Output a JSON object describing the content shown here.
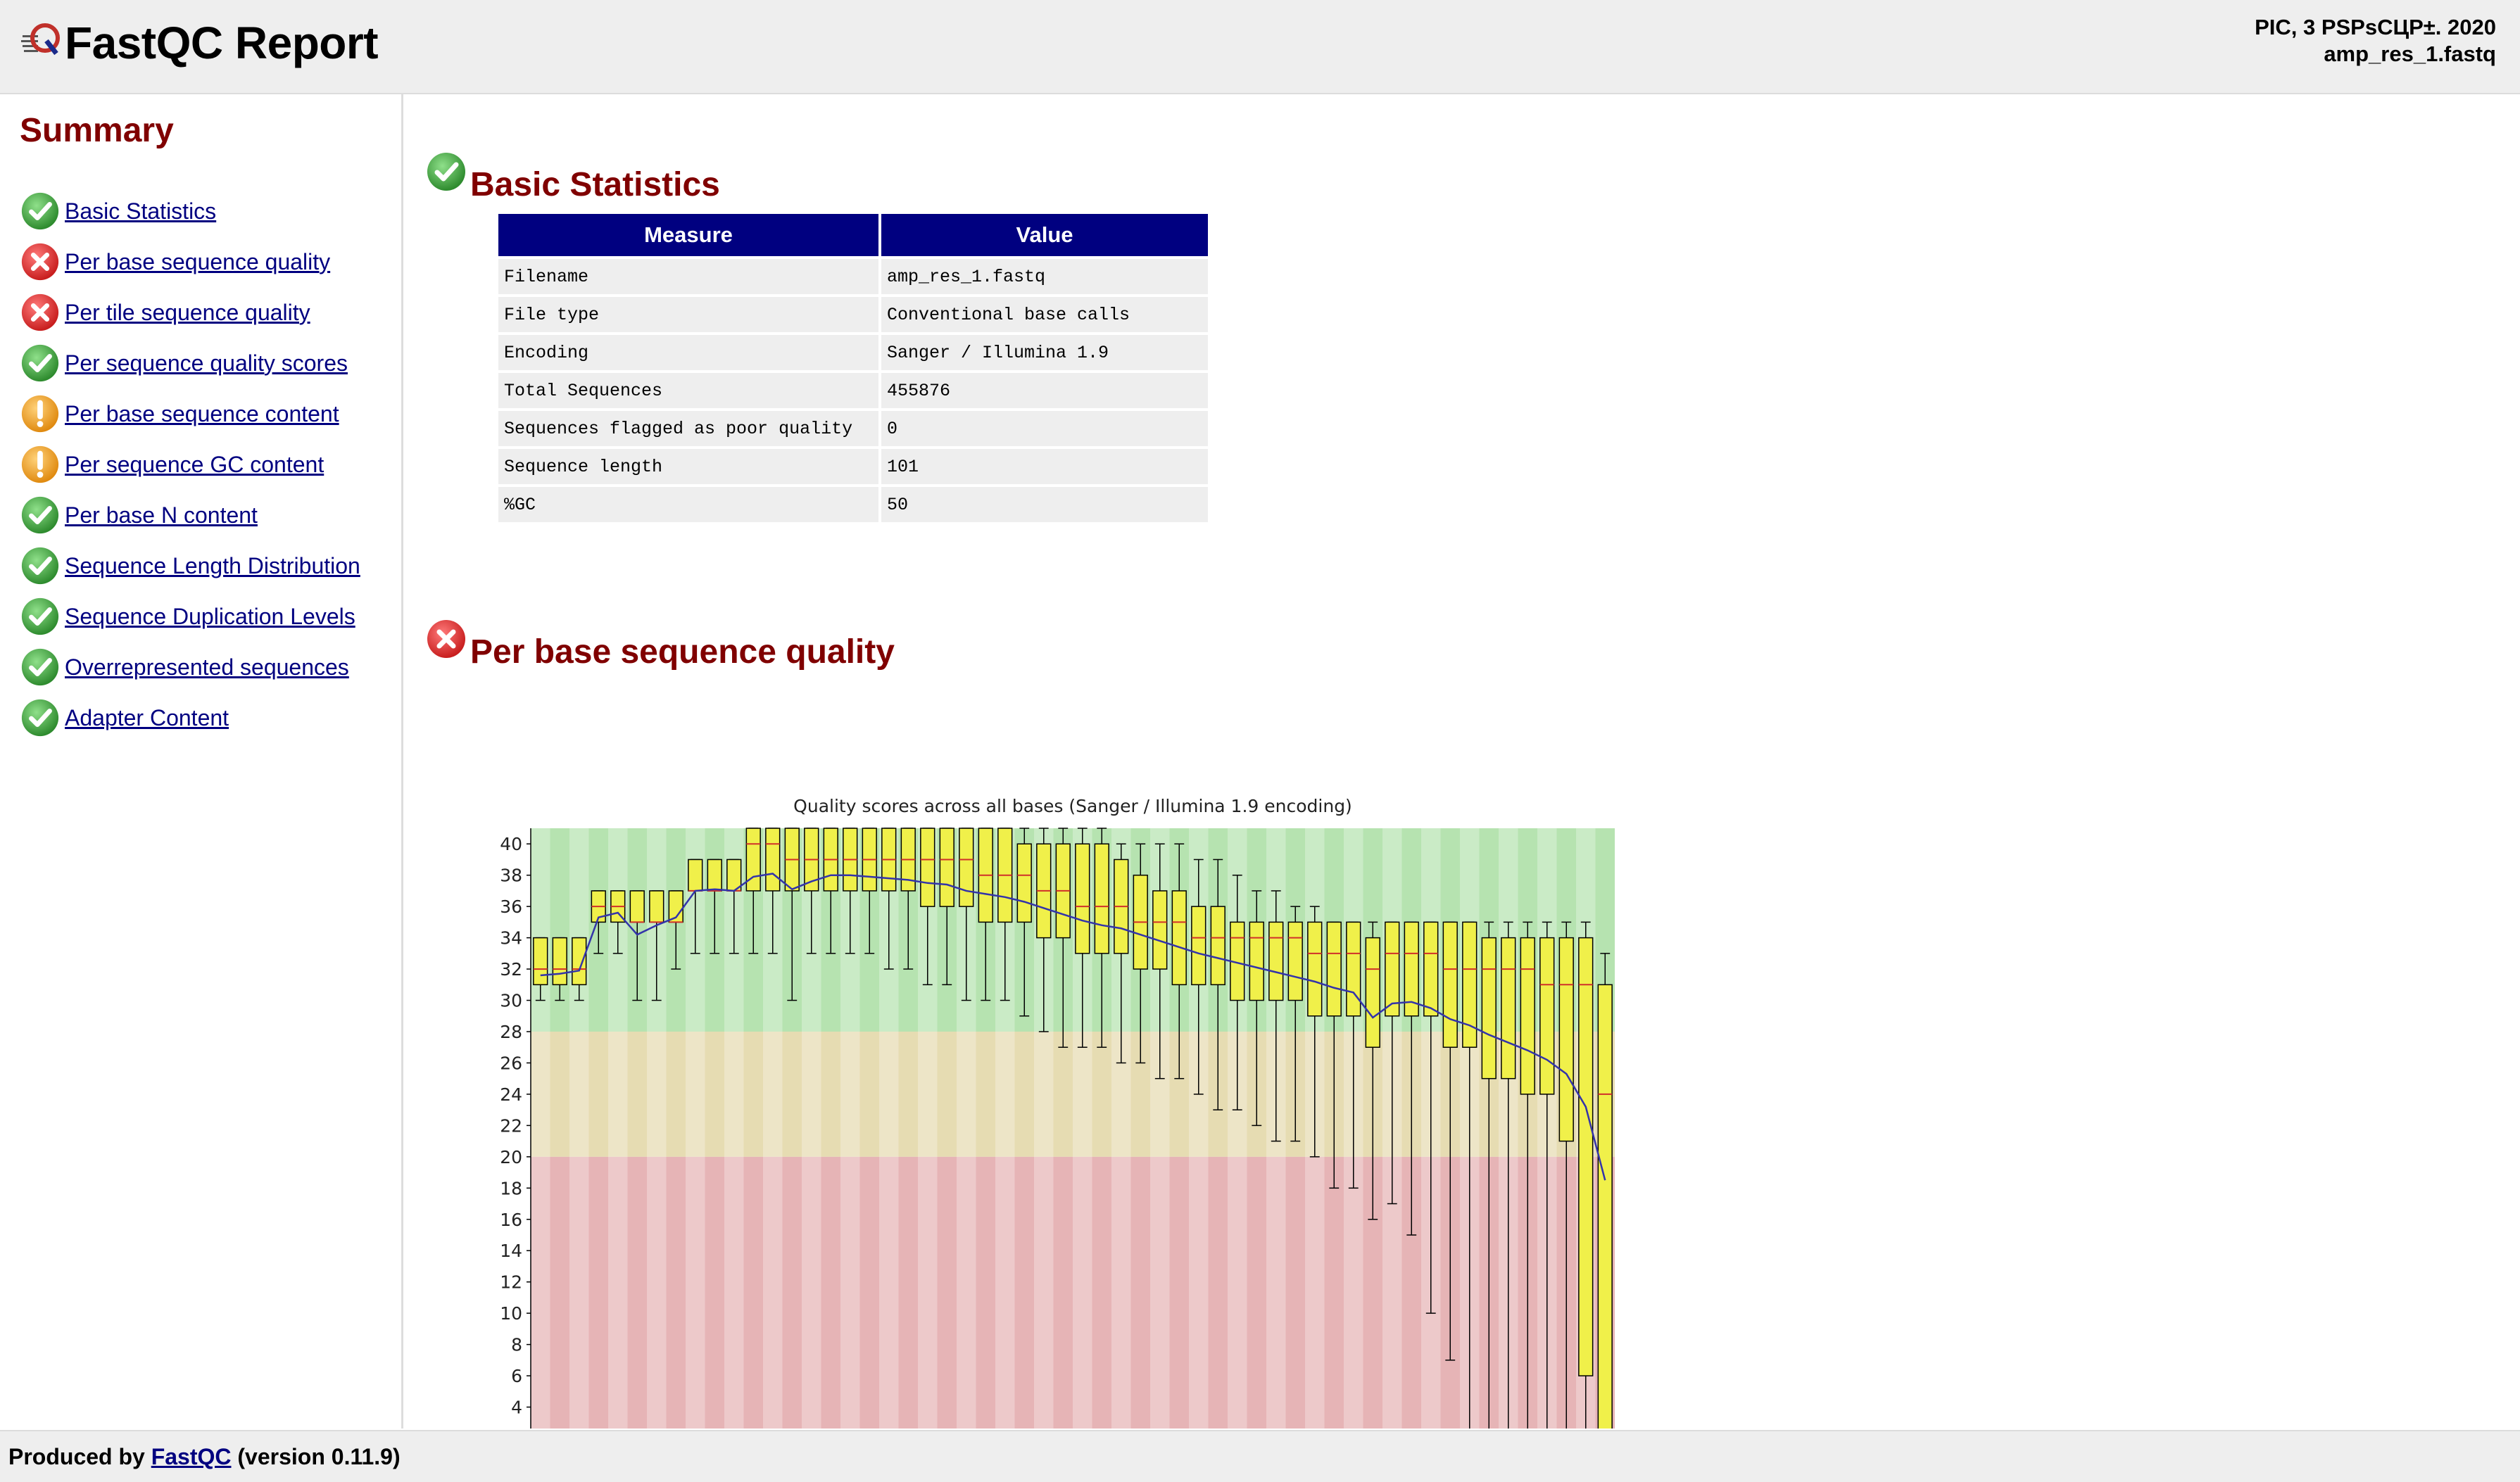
{
  "header": {
    "title": "FastQC Report",
    "date": "PIC, 3 PSPsCЦP±. 2020",
    "filename": "amp_res_1.fastq"
  },
  "summary": {
    "title": "Summary",
    "items": [
      {
        "label": "Basic Statistics",
        "status": "pass"
      },
      {
        "label": "Per base sequence quality",
        "status": "fail"
      },
      {
        "label": "Per tile sequence quality",
        "status": "fail"
      },
      {
        "label": "Per sequence quality scores",
        "status": "pass"
      },
      {
        "label": "Per base sequence content",
        "status": "warn"
      },
      {
        "label": "Per sequence GC content",
        "status": "warn"
      },
      {
        "label": "Per base N content",
        "status": "pass"
      },
      {
        "label": "Sequence Length Distribution",
        "status": "pass"
      },
      {
        "label": "Sequence Duplication Levels",
        "status": "pass"
      },
      {
        "label": "Overrepresented sequences",
        "status": "pass"
      },
      {
        "label": "Adapter Content",
        "status": "pass"
      }
    ]
  },
  "basic_statistics": {
    "title": "Basic Statistics",
    "status": "pass",
    "headers": [
      "Measure",
      "Value"
    ],
    "rows": [
      {
        "measure": "Filename",
        "value": "amp_res_1.fastq"
      },
      {
        "measure": "File type",
        "value": "Conventional base calls"
      },
      {
        "measure": "Encoding",
        "value": "Sanger / Illumina 1.9"
      },
      {
        "measure": "Total Sequences",
        "value": "455876"
      },
      {
        "measure": "Sequences flagged as poor quality",
        "value": "0"
      },
      {
        "measure": "Sequence length",
        "value": "101"
      },
      {
        "measure": "%GC",
        "value": "50"
      }
    ]
  },
  "per_base_quality": {
    "title": "Per base sequence quality",
    "status": "fail"
  },
  "chart_data": {
    "type": "box",
    "title": "Quality scores across all bases (Sanger / Illumina 1.9 encoding)",
    "yticks": [
      4,
      6,
      8,
      10,
      12,
      14,
      16,
      18,
      20,
      22,
      24,
      26,
      28,
      30,
      32,
      34,
      36,
      38,
      40
    ],
    "ylim": [
      2,
      41
    ],
    "zones": [
      {
        "from": 28,
        "to": 41,
        "color": "#b6e3b0"
      },
      {
        "from": 20,
        "to": 28,
        "color": "#e6dcb2"
      },
      {
        "from": 0,
        "to": 20,
        "color": "#e6b4b6"
      }
    ],
    "colors": {
      "box": "#f0f04a",
      "median": "#d0302a",
      "mean": "#3333aa"
    },
    "boxes": [
      {
        "min": 30,
        "q1": 31,
        "median": 32,
        "q3": 34,
        "max": 34,
        "mean": 31.6
      },
      {
        "min": 30,
        "q1": 31,
        "median": 32,
        "q3": 34,
        "max": 34,
        "mean": 31.7
      },
      {
        "min": 30,
        "q1": 31,
        "median": 32,
        "q3": 34,
        "max": 34,
        "mean": 31.9
      },
      {
        "min": 33,
        "q1": 35,
        "median": 36,
        "q3": 37,
        "max": 37,
        "mean": 35.3
      },
      {
        "min": 33,
        "q1": 35,
        "median": 36,
        "q3": 37,
        "max": 37,
        "mean": 35.6
      },
      {
        "min": 30,
        "q1": 35,
        "median": 35,
        "q3": 37,
        "max": 37,
        "mean": 34.2
      },
      {
        "min": 30,
        "q1": 35,
        "median": 35,
        "q3": 37,
        "max": 37,
        "mean": 34.8
      },
      {
        "min": 32,
        "q1": 35,
        "median": 35,
        "q3": 37,
        "max": 37,
        "mean": 35.3
      },
      {
        "min": 33,
        "q1": 37,
        "median": 37,
        "q3": 39,
        "max": 39,
        "mean": 37.0
      },
      {
        "min": 33,
        "q1": 37,
        "median": 37,
        "q3": 39,
        "max": 39,
        "mean": 37.1
      },
      {
        "min": 33,
        "q1": 37,
        "median": 37,
        "q3": 39,
        "max": 39,
        "mean": 37.0
      },
      {
        "min": 33,
        "q1": 37,
        "median": 40,
        "q3": 41,
        "max": 41,
        "mean": 37.9
      },
      {
        "min": 33,
        "q1": 37,
        "median": 40,
        "q3": 41,
        "max": 41,
        "mean": 38.1
      },
      {
        "min": 30,
        "q1": 37,
        "median": 39,
        "q3": 41,
        "max": 41,
        "mean": 37.1
      },
      {
        "min": 33,
        "q1": 37,
        "median": 39,
        "q3": 41,
        "max": 41,
        "mean": 37.6
      },
      {
        "min": 33,
        "q1": 37,
        "median": 39,
        "q3": 41,
        "max": 41,
        "mean": 38.0
      },
      {
        "min": 33,
        "q1": 37,
        "median": 39,
        "q3": 41,
        "max": 41,
        "mean": 38.0
      },
      {
        "min": 33,
        "q1": 37,
        "median": 39,
        "q3": 41,
        "max": 41,
        "mean": 37.9
      },
      {
        "min": 32,
        "q1": 37,
        "median": 39,
        "q3": 41,
        "max": 41,
        "mean": 37.8
      },
      {
        "min": 32,
        "q1": 37,
        "median": 39,
        "q3": 41,
        "max": 41,
        "mean": 37.7
      },
      {
        "min": 31,
        "q1": 36,
        "median": 39,
        "q3": 41,
        "max": 41,
        "mean": 37.5
      },
      {
        "min": 31,
        "q1": 36,
        "median": 39,
        "q3": 41,
        "max": 41,
        "mean": 37.4
      },
      {
        "min": 30,
        "q1": 36,
        "median": 39,
        "q3": 41,
        "max": 41,
        "mean": 37.0
      },
      {
        "min": 30,
        "q1": 35,
        "median": 38,
        "q3": 41,
        "max": 41,
        "mean": 36.8
      },
      {
        "min": 30,
        "q1": 35,
        "median": 38,
        "q3": 41,
        "max": 41,
        "mean": 36.6
      },
      {
        "min": 29,
        "q1": 35,
        "median": 38,
        "q3": 40,
        "max": 41,
        "mean": 36.3
      },
      {
        "min": 28,
        "q1": 34,
        "median": 37,
        "q3": 40,
        "max": 41,
        "mean": 35.9
      },
      {
        "min": 27,
        "q1": 34,
        "median": 37,
        "q3": 40,
        "max": 41,
        "mean": 35.5
      },
      {
        "min": 27,
        "q1": 33,
        "median": 36,
        "q3": 40,
        "max": 41,
        "mean": 35.1
      },
      {
        "min": 27,
        "q1": 33,
        "median": 36,
        "q3": 40,
        "max": 41,
        "mean": 34.8
      },
      {
        "min": 26,
        "q1": 33,
        "median": 36,
        "q3": 39,
        "max": 40,
        "mean": 34.6
      },
      {
        "min": 26,
        "q1": 32,
        "median": 35,
        "q3": 38,
        "max": 40,
        "mean": 34.2
      },
      {
        "min": 25,
        "q1": 32,
        "median": 35,
        "q3": 37,
        "max": 40,
        "mean": 33.8
      },
      {
        "min": 25,
        "q1": 31,
        "median": 35,
        "q3": 37,
        "max": 40,
        "mean": 33.4
      },
      {
        "min": 24,
        "q1": 31,
        "median": 34,
        "q3": 36,
        "max": 39,
        "mean": 33.0
      },
      {
        "min": 23,
        "q1": 31,
        "median": 34,
        "q3": 36,
        "max": 39,
        "mean": 32.7
      },
      {
        "min": 23,
        "q1": 30,
        "median": 34,
        "q3": 35,
        "max": 38,
        "mean": 32.4
      },
      {
        "min": 22,
        "q1": 30,
        "median": 34,
        "q3": 35,
        "max": 37,
        "mean": 32.1
      },
      {
        "min": 21,
        "q1": 30,
        "median": 34,
        "q3": 35,
        "max": 37,
        "mean": 31.8
      },
      {
        "min": 21,
        "q1": 30,
        "median": 34,
        "q3": 35,
        "max": 36,
        "mean": 31.5
      },
      {
        "min": 20,
        "q1": 29,
        "median": 33,
        "q3": 35,
        "max": 36,
        "mean": 31.2
      },
      {
        "min": 18,
        "q1": 29,
        "median": 33,
        "q3": 35,
        "max": 35,
        "mean": 30.8
      },
      {
        "min": 18,
        "q1": 29,
        "median": 33,
        "q3": 35,
        "max": 35,
        "mean": 30.5
      },
      {
        "min": 16,
        "q1": 27,
        "median": 32,
        "q3": 34,
        "max": 35,
        "mean": 28.9
      },
      {
        "min": 17,
        "q1": 29,
        "median": 33,
        "q3": 35,
        "max": 35,
        "mean": 29.8
      },
      {
        "min": 15,
        "q1": 29,
        "median": 33,
        "q3": 35,
        "max": 35,
        "mean": 29.9
      },
      {
        "min": 10,
        "q1": 29,
        "median": 33,
        "q3": 35,
        "max": 35,
        "mean": 29.5
      },
      {
        "min": 7,
        "q1": 27,
        "median": 32,
        "q3": 35,
        "max": 35,
        "mean": 28.8
      },
      {
        "min": 2,
        "q1": 27,
        "median": 32,
        "q3": 35,
        "max": 35,
        "mean": 28.4
      },
      {
        "min": 2,
        "q1": 25,
        "median": 32,
        "q3": 34,
        "max": 35,
        "mean": 27.8
      },
      {
        "min": 2,
        "q1": 25,
        "median": 32,
        "q3": 34,
        "max": 35,
        "mean": 27.3
      },
      {
        "min": 2,
        "q1": 24,
        "median": 32,
        "q3": 34,
        "max": 35,
        "mean": 26.8
      },
      {
        "min": 2,
        "q1": 24,
        "median": 31,
        "q3": 34,
        "max": 35,
        "mean": 26.2
      },
      {
        "min": 2,
        "q1": 21,
        "median": 31,
        "q3": 34,
        "max": 35,
        "mean": 25.3
      },
      {
        "min": 2,
        "q1": 6,
        "median": 31,
        "q3": 34,
        "max": 35,
        "mean": 23.2
      },
      {
        "min": 2,
        "q1": 2,
        "median": 24,
        "q3": 31,
        "max": 33,
        "mean": 18.5
      }
    ]
  },
  "footer": {
    "prefix": "Produced by ",
    "link": "FastQC",
    "suffix": " (version 0.11.9)"
  }
}
